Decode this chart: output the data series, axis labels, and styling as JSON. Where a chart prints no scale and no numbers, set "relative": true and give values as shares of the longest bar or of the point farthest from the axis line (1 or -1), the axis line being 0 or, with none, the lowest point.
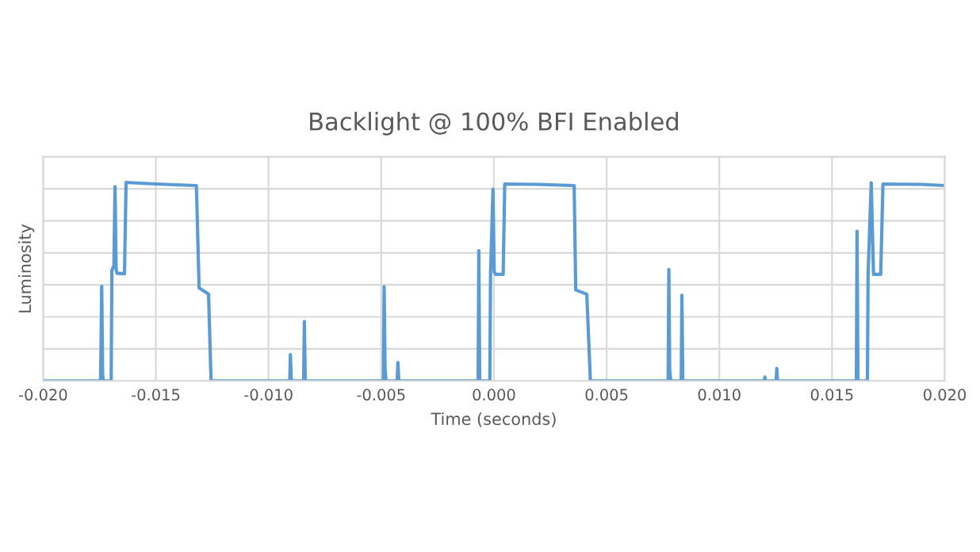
{
  "chart_data": {
    "type": "line",
    "title": "Backlight @ 100% BFI Enabled",
    "xlabel": "Time (seconds)",
    "ylabel": "Luminosity",
    "relative": true,
    "grid": true,
    "legend": false,
    "marker": "none",
    "line_style": "solid",
    "xlim": [
      -0.02,
      0.02
    ],
    "xticks": [
      {
        "value": -0.02,
        "label": "-0.020"
      },
      {
        "value": -0.015,
        "label": "-0.015"
      },
      {
        "value": -0.01,
        "label": "-0.010"
      },
      {
        "value": -0.005,
        "label": "-0.005"
      },
      {
        "value": 0,
        "label": "0.000"
      },
      {
        "value": 0.005,
        "label": "0.005"
      },
      {
        "value": 0.01,
        "label": "0.010"
      },
      {
        "value": 0.015,
        "label": "0.015"
      },
      {
        "value": 0.02,
        "label": "0.020"
      }
    ],
    "series": [
      {
        "color": "#5b9bd5",
        "x": [
          -0.02,
          -0.01745,
          -0.0174,
          -0.01736,
          -0.01733,
          -0.01698,
          -0.01695,
          -0.01686,
          -0.01681,
          -0.01676,
          -0.01672,
          -0.01639,
          -0.01632,
          -0.015,
          -0.0132,
          -0.01308,
          -0.01266,
          -0.01255,
          -0.00906,
          -0.00903,
          -0.00899,
          -0.00844,
          -0.00841,
          -0.00837,
          -0.0049,
          -0.00487,
          -0.00483,
          -0.00479,
          -0.00429,
          -0.00426,
          -0.00422,
          -0.0007,
          -0.00067,
          -0.00063,
          -0.00018,
          -0.00015,
          -4e-05,
          1e-05,
          8e-05,
          0.00041,
          0.00048,
          0.002,
          0.00356,
          0.00363,
          0.00412,
          0.00428,
          0.00773,
          0.00776,
          0.0078,
          0.00785,
          0.00831,
          0.00834,
          0.00838,
          0.01199,
          0.01202,
          0.01205,
          0.01252,
          0.01255,
          0.01258,
          0.01608,
          0.01611,
          0.01615,
          0.01657,
          0.0166,
          0.01674,
          0.01684,
          0.01716,
          0.01726,
          0.019,
          0.02
        ],
        "values": [
          0,
          0,
          0.476,
          0.03,
          0,
          0,
          0.556,
          0.58,
          0.979,
          0.56,
          0.542,
          0.54,
          1.0,
          0.992,
          0.984,
          0.468,
          0.437,
          0,
          0,
          0.132,
          0,
          0,
          0.299,
          0,
          0,
          0.474,
          0.06,
          0,
          0,
          0.093,
          0,
          0,
          0.656,
          0,
          0,
          0.542,
          0.966,
          0.55,
          0.537,
          0.537,
          0.992,
          0.99,
          0.984,
          0.458,
          0.437,
          0,
          0,
          0.561,
          0.05,
          0,
          0,
          0.431,
          0,
          0,
          0.02,
          0,
          0,
          0.063,
          0,
          0,
          0.754,
          0,
          0,
          0.537,
          0.998,
          0.537,
          0.537,
          0.992,
          0.99,
          0.984
        ]
      }
    ]
  }
}
